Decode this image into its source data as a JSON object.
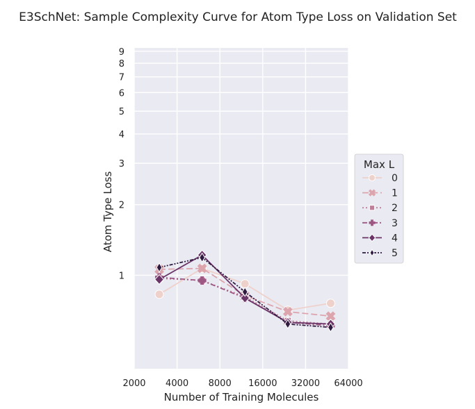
{
  "chart_data": {
    "type": "line",
    "title": "E3SchNet: Sample Complexity Curve for Atom Type Loss on Validation Set",
    "xlabel": "Number of Training Molecules",
    "ylabel": "Atom Type Loss",
    "x_scale": "log2",
    "y_scale": "log",
    "xlim": [
      2000,
      64000
    ],
    "ylim": [
      0.4,
      9.3
    ],
    "x_ticks": [
      2000,
      4000,
      8000,
      16000,
      32000,
      64000
    ],
    "x_tick_labels": [
      "2000",
      "4000",
      "8000",
      "16000",
      "32000",
      "64000"
    ],
    "y_ticks": [
      1,
      2,
      3,
      4,
      5,
      6,
      7,
      8,
      9
    ],
    "y_tick_labels": [
      "1",
      "2",
      "3",
      "4",
      "5",
      "6",
      "7",
      "8",
      "9"
    ],
    "grid": true,
    "legend": {
      "title": "Max L",
      "placement": "right"
    },
    "x": [
      3000,
      6000,
      12000,
      24000,
      48000
    ],
    "series": [
      {
        "name": "0",
        "values": [
          0.83,
          1.07,
          0.92,
          0.71,
          0.76
        ],
        "color": "#efd1cb",
        "marker": "circle",
        "dash": "solid"
      },
      {
        "name": "1",
        "values": [
          1.06,
          1.07,
          0.82,
          0.7,
          0.67
        ],
        "color": "#dca5ae",
        "marker": "x",
        "dash": "long-dash"
      },
      {
        "name": "2",
        "values": [
          0.97,
          0.95,
          0.81,
          0.64,
          0.62
        ],
        "color": "#c07f99",
        "marker": "square",
        "dash": "dotted"
      },
      {
        "name": "3",
        "values": [
          0.98,
          0.95,
          0.8,
          0.63,
          0.61
        ],
        "color": "#9c5883",
        "marker": "plus",
        "dash": "dash-dot"
      },
      {
        "name": "4",
        "values": [
          0.96,
          1.22,
          0.8,
          0.63,
          0.62
        ],
        "color": "#6b3568",
        "marker": "diamond",
        "dash": "solid"
      },
      {
        "name": "5",
        "values": [
          1.08,
          1.19,
          0.85,
          0.62,
          0.6
        ],
        "color": "#2e1b3f",
        "marker": "thin-diamond",
        "dash": "dash-dot-dot"
      }
    ]
  }
}
